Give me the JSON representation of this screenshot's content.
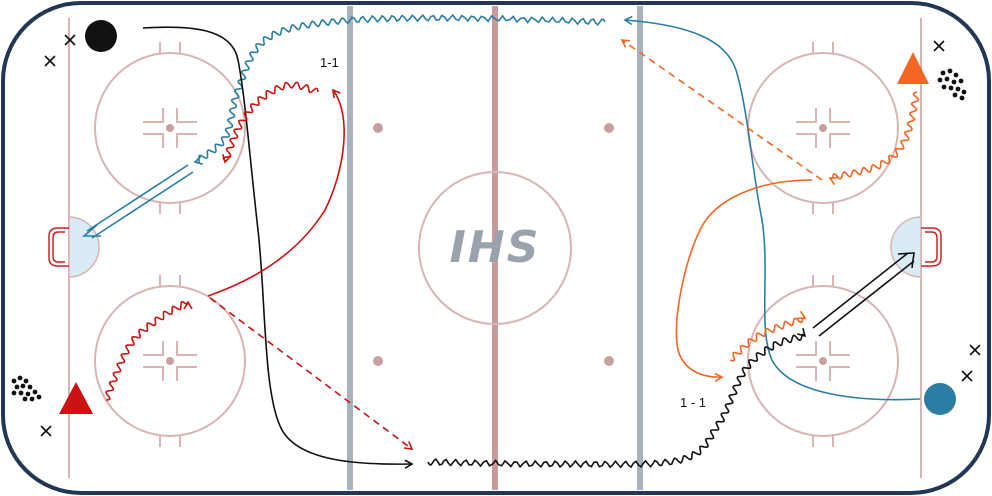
{
  "diagram": {
    "logo_text": "IHS",
    "label_top": "1-1",
    "label_bottom": "1 - 1",
    "colors": {
      "board": "#223852",
      "line_pink": "#d8b4b4",
      "red_line": "#c89a9a",
      "blue_line": "#a9b3bd",
      "crease": "#d9ecf6",
      "goal": "#cc2222",
      "black": "#111111",
      "red": "#cc1111",
      "orange": "#f26522",
      "teal": "#2a7da3"
    },
    "players": [
      {
        "name": "black-player",
        "shape": "circle",
        "color": "#111111"
      },
      {
        "name": "red-player",
        "shape": "triangle",
        "color": "#cc1111"
      },
      {
        "name": "orange-player",
        "shape": "triangle",
        "color": "#f26522"
      },
      {
        "name": "teal-player",
        "shape": "circle",
        "color": "#2a7da3"
      }
    ],
    "pucks": [
      "puck-pile-left",
      "puck-pile-right"
    ]
  }
}
